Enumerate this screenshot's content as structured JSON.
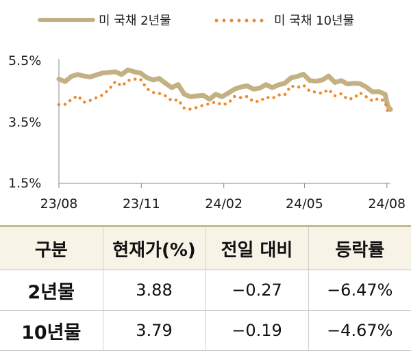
{
  "chart_data": {
    "type": "line",
    "legend": [
      {
        "name": "미 국채 2년물",
        "color": "#c4b183",
        "style": "solid"
      },
      {
        "name": "미 국채 10년물",
        "color": "#ee8a2e",
        "style": "dotted"
      }
    ],
    "legend_position": "top-left",
    "x_range": [
      "2023-08-01",
      "2024-08-05"
    ],
    "x_ticks": [
      {
        "label": "23/08",
        "date": "2023-08-01"
      },
      {
        "label": "23/11",
        "date": "2023-11-01"
      },
      {
        "label": "24/02",
        "date": "2024-02-01"
      },
      {
        "label": "24/05",
        "date": "2024-05-01"
      },
      {
        "label": "24/08",
        "date": "2024-08-01"
      }
    ],
    "y_ticks": [
      {
        "label": "5.5%",
        "value": 5.5
      },
      {
        "label": "3.5%",
        "value": 3.5
      },
      {
        "label": "1.5%",
        "value": 1.5
      }
    ],
    "ylim": [
      1.5,
      5.5
    ],
    "grid": false,
    "series": [
      {
        "name": "미 국채 2년물",
        "points": [
          [
            "2023-08-01",
            4.88
          ],
          [
            "2023-08-08",
            4.8
          ],
          [
            "2023-08-15",
            4.97
          ],
          [
            "2023-08-22",
            5.03
          ],
          [
            "2023-08-29",
            4.98
          ],
          [
            "2023-09-05",
            4.95
          ],
          [
            "2023-09-12",
            5.02
          ],
          [
            "2023-09-19",
            5.08
          ],
          [
            "2023-09-26",
            5.1
          ],
          [
            "2023-10-03",
            5.12
          ],
          [
            "2023-10-10",
            5.03
          ],
          [
            "2023-10-17",
            5.18
          ],
          [
            "2023-10-24",
            5.12
          ],
          [
            "2023-10-31",
            5.08
          ],
          [
            "2023-11-07",
            4.93
          ],
          [
            "2023-11-14",
            4.85
          ],
          [
            "2023-11-21",
            4.9
          ],
          [
            "2023-11-28",
            4.74
          ],
          [
            "2023-12-05",
            4.6
          ],
          [
            "2023-12-12",
            4.7
          ],
          [
            "2023-12-19",
            4.38
          ],
          [
            "2023-12-26",
            4.3
          ],
          [
            "2024-01-02",
            4.33
          ],
          [
            "2024-01-09",
            4.35
          ],
          [
            "2024-01-16",
            4.22
          ],
          [
            "2024-01-23",
            4.38
          ],
          [
            "2024-01-30",
            4.3
          ],
          [
            "2024-02-06",
            4.42
          ],
          [
            "2024-02-13",
            4.55
          ],
          [
            "2024-02-20",
            4.62
          ],
          [
            "2024-02-27",
            4.66
          ],
          [
            "2024-03-05",
            4.55
          ],
          [
            "2024-03-12",
            4.58
          ],
          [
            "2024-03-19",
            4.7
          ],
          [
            "2024-03-26",
            4.6
          ],
          [
            "2024-04-02",
            4.69
          ],
          [
            "2024-04-09",
            4.74
          ],
          [
            "2024-04-16",
            4.92
          ],
          [
            "2024-04-23",
            4.97
          ],
          [
            "2024-04-30",
            5.04
          ],
          [
            "2024-05-07",
            4.83
          ],
          [
            "2024-05-14",
            4.81
          ],
          [
            "2024-05-21",
            4.85
          ],
          [
            "2024-05-28",
            4.98
          ],
          [
            "2024-06-04",
            4.77
          ],
          [
            "2024-06-11",
            4.83
          ],
          [
            "2024-06-18",
            4.72
          ],
          [
            "2024-06-25",
            4.74
          ],
          [
            "2024-07-02",
            4.73
          ],
          [
            "2024-07-09",
            4.62
          ],
          [
            "2024-07-16",
            4.46
          ],
          [
            "2024-07-23",
            4.47
          ],
          [
            "2024-07-30",
            4.38
          ],
          [
            "2024-08-02",
            4.0
          ],
          [
            "2024-08-05",
            3.88
          ]
        ]
      },
      {
        "name": "미 국채 10년물",
        "points": [
          [
            "2023-08-01",
            4.04
          ],
          [
            "2023-08-08",
            4.05
          ],
          [
            "2023-08-15",
            4.21
          ],
          [
            "2023-08-22",
            4.33
          ],
          [
            "2023-08-29",
            4.12
          ],
          [
            "2023-09-05",
            4.18
          ],
          [
            "2023-09-12",
            4.27
          ],
          [
            "2023-09-19",
            4.36
          ],
          [
            "2023-09-26",
            4.55
          ],
          [
            "2023-10-03",
            4.8
          ],
          [
            "2023-10-10",
            4.65
          ],
          [
            "2023-10-17",
            4.83
          ],
          [
            "2023-10-24",
            4.88
          ],
          [
            "2023-10-31",
            4.88
          ],
          [
            "2023-11-07",
            4.57
          ],
          [
            "2023-11-14",
            4.44
          ],
          [
            "2023-11-21",
            4.41
          ],
          [
            "2023-11-28",
            4.33
          ],
          [
            "2023-12-05",
            4.17
          ],
          [
            "2023-12-12",
            4.2
          ],
          [
            "2023-12-19",
            3.92
          ],
          [
            "2023-12-26",
            3.89
          ],
          [
            "2024-01-02",
            3.95
          ],
          [
            "2024-01-09",
            4.02
          ],
          [
            "2024-01-16",
            4.07
          ],
          [
            "2024-01-23",
            4.13
          ],
          [
            "2024-01-30",
            4.03
          ],
          [
            "2024-02-06",
            4.09
          ],
          [
            "2024-02-13",
            4.31
          ],
          [
            "2024-02-20",
            4.27
          ],
          [
            "2024-02-27",
            4.31
          ],
          [
            "2024-03-05",
            4.14
          ],
          [
            "2024-03-12",
            4.15
          ],
          [
            "2024-03-19",
            4.29
          ],
          [
            "2024-03-26",
            4.24
          ],
          [
            "2024-04-02",
            4.36
          ],
          [
            "2024-04-09",
            4.36
          ],
          [
            "2024-04-16",
            4.66
          ],
          [
            "2024-04-23",
            4.6
          ],
          [
            "2024-04-30",
            4.68
          ],
          [
            "2024-05-07",
            4.48
          ],
          [
            "2024-05-14",
            4.45
          ],
          [
            "2024-05-21",
            4.41
          ],
          [
            "2024-05-28",
            4.54
          ],
          [
            "2024-06-04",
            4.33
          ],
          [
            "2024-06-11",
            4.4
          ],
          [
            "2024-06-18",
            4.22
          ],
          [
            "2024-06-25",
            4.25
          ],
          [
            "2024-07-02",
            4.43
          ],
          [
            "2024-07-09",
            4.3
          ],
          [
            "2024-07-16",
            4.16
          ],
          [
            "2024-07-23",
            4.25
          ],
          [
            "2024-07-30",
            4.14
          ],
          [
            "2024-08-02",
            3.8
          ],
          [
            "2024-08-05",
            3.79
          ]
        ]
      }
    ]
  },
  "table": {
    "headers": [
      "구분",
      "현재가(%)",
      "전일 대비",
      "등락률"
    ],
    "rows": [
      {
        "name": "2년물",
        "price": "3.88",
        "change": "-0.27",
        "rate": "-6.47%"
      },
      {
        "name": "10년물",
        "price": "3.79",
        "change": "-0.19",
        "rate": "-4.67%"
      }
    ]
  }
}
